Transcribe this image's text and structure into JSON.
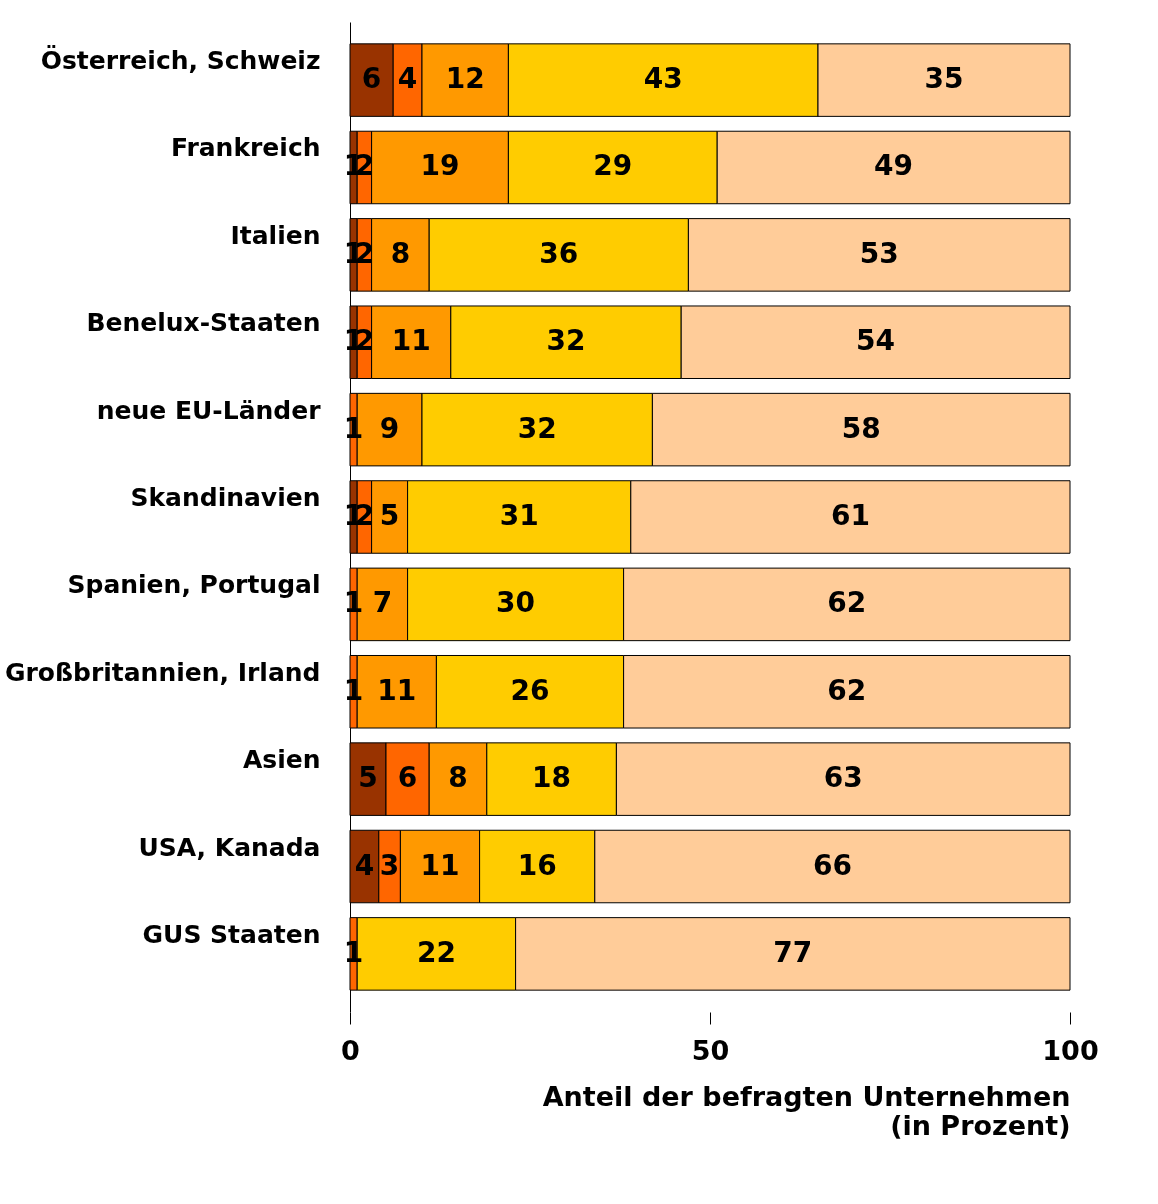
{
  "chart_data": {
    "type": "bar",
    "orientation": "horizontal",
    "stacked": true,
    "data_labels": true,
    "categories": [
      "Österreich, Schweiz",
      "Frankreich",
      "Italien",
      "Benelux-Staaten",
      "neue EU-Länder",
      "Skandinavien",
      "Spanien, Portugal",
      "Großbritannien, Irland",
      "Asien",
      "USA, Kanada",
      "GUS Staaten"
    ],
    "series": [
      {
        "color": "#993300",
        "values": [
          6,
          1,
          1,
          1,
          null,
          1,
          null,
          null,
          5,
          4,
          null
        ]
      },
      {
        "color": "#ff6600",
        "values": [
          4,
          2,
          2,
          2,
          1,
          2,
          1,
          1,
          6,
          3,
          1
        ]
      },
      {
        "color": "#ff9900",
        "values": [
          12,
          19,
          8,
          11,
          9,
          5,
          7,
          11,
          8,
          11,
          null
        ]
      },
      {
        "color": "#ffcc00",
        "values": [
          43,
          29,
          36,
          32,
          32,
          31,
          30,
          26,
          18,
          16,
          22
        ]
      },
      {
        "color": "#ffcc99",
        "values": [
          35,
          49,
          53,
          54,
          58,
          61,
          62,
          62,
          63,
          66,
          77
        ]
      }
    ],
    "xlim": [
      0,
      100
    ],
    "xticks": [
      0,
      50,
      100
    ],
    "grid": false,
    "xlabel": "Anteil der befragten Unternehmen\n(in Prozent)"
  }
}
